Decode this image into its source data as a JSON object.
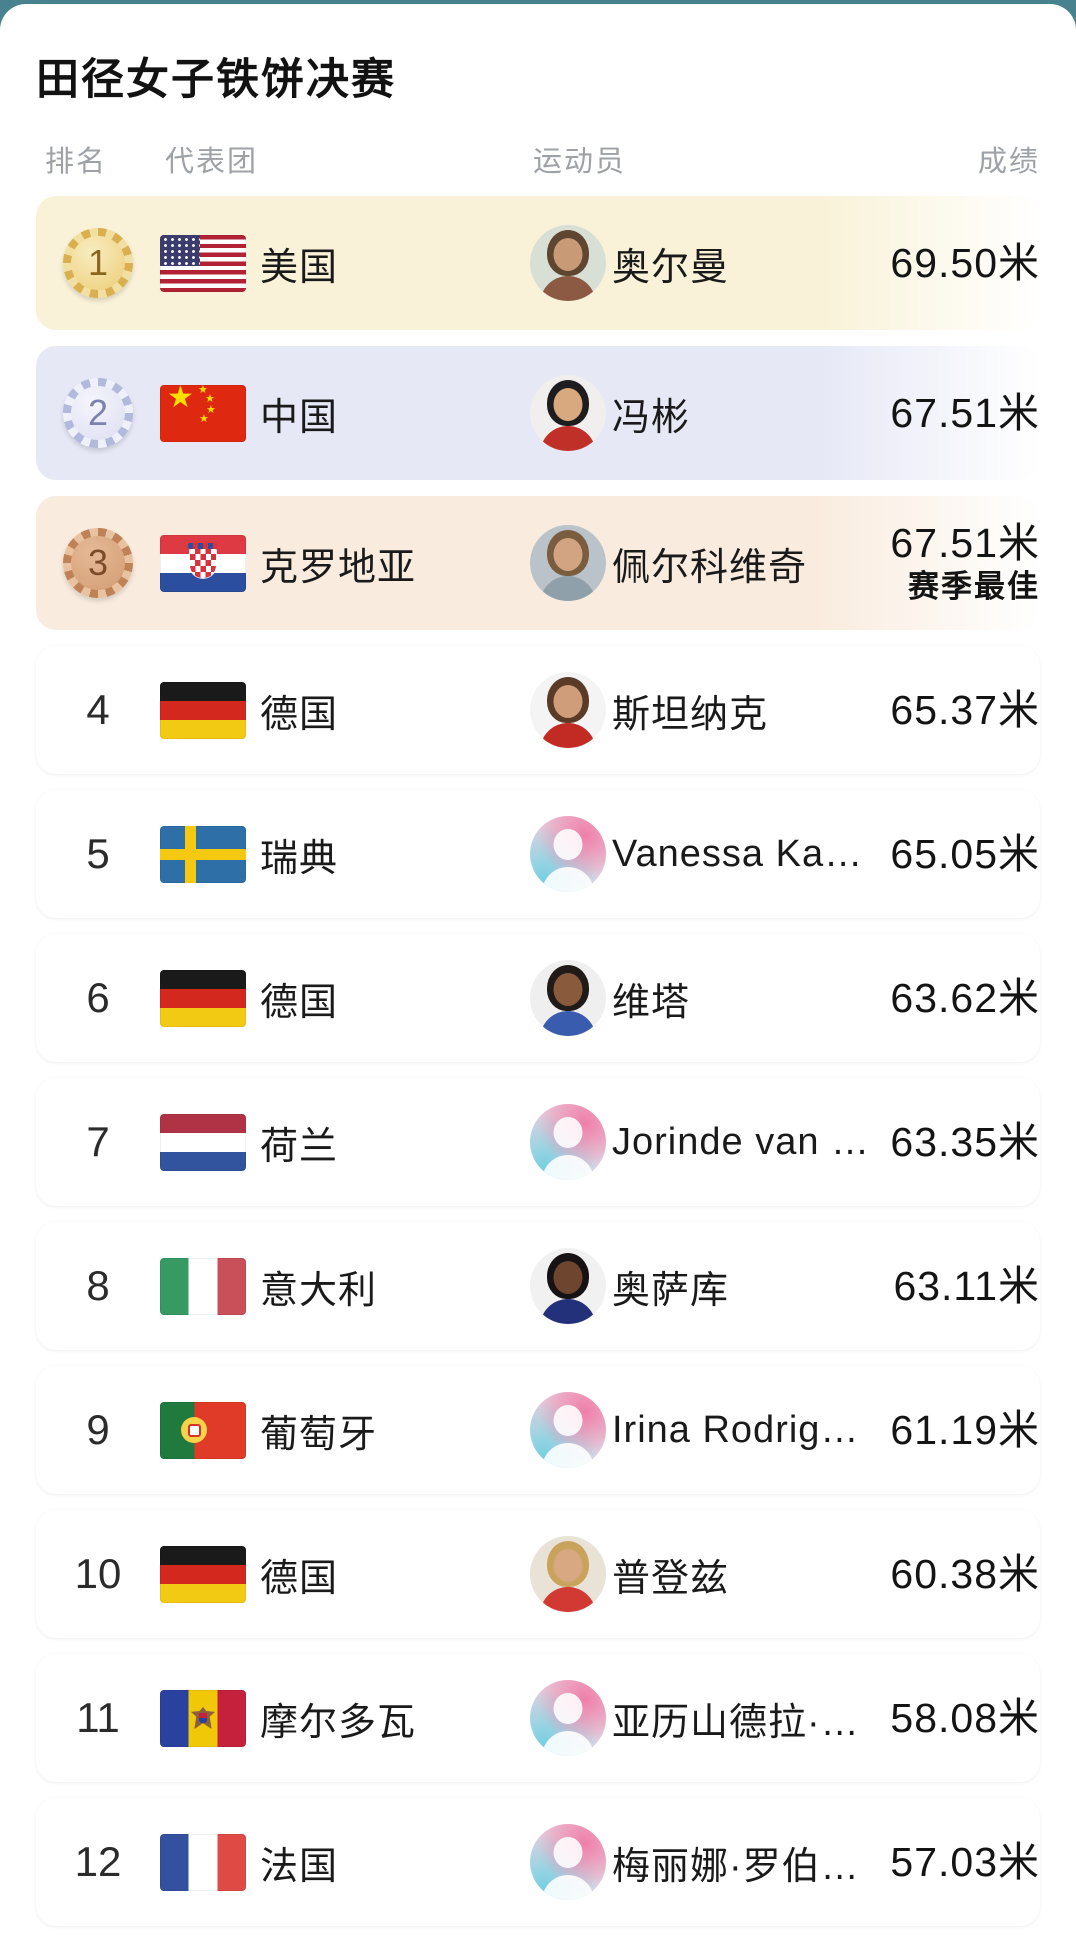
{
  "page": {
    "background_color": "#47828e",
    "card_color": "#ffffff"
  },
  "title": "田径女子铁饼决赛",
  "table": {
    "columns": [
      {
        "key": "rank",
        "label": "排名"
      },
      {
        "key": "team",
        "label": "代表团"
      },
      {
        "key": "athlete",
        "label": "运动员"
      },
      {
        "key": "result",
        "label": "成绩"
      }
    ],
    "rows": [
      {
        "rank": "1",
        "medal": "gold",
        "country": "美国",
        "flag": "us",
        "athlete": "奥尔曼",
        "result": "69.50米",
        "note": "",
        "avatar": {
          "type": "photo",
          "bg": "#d8e0d6",
          "hair": "#5f4630",
          "skin": "#c99a76",
          "shirt": "#8c5a42"
        }
      },
      {
        "rank": "2",
        "medal": "silver",
        "country": "中国",
        "flag": "cn",
        "athlete": "冯彬",
        "result": "67.51米",
        "note": "",
        "avatar": {
          "type": "photo",
          "bg": "#f0efed",
          "hair": "#1d1d1f",
          "skin": "#d8a87e",
          "shirt": "#c03028"
        }
      },
      {
        "rank": "3",
        "medal": "bronze",
        "country": "克罗地亚",
        "flag": "hr",
        "athlete": "佩尔科维奇",
        "result": "67.51米",
        "note": "赛季最佳",
        "avatar": {
          "type": "photo",
          "bg": "#b9c3c9",
          "hair": "#7a5c3e",
          "skin": "#d3a482",
          "shirt": "#90a0ab"
        }
      },
      {
        "rank": "4",
        "medal": "",
        "country": "德国",
        "flag": "de",
        "athlete": "斯坦纳克",
        "result": "65.37米",
        "note": "",
        "avatar": {
          "type": "photo",
          "bg": "#f4f4f4",
          "hair": "#5a3b28",
          "skin": "#cf9d79",
          "shirt": "#c22b24"
        }
      },
      {
        "rank": "5",
        "medal": "",
        "country": "瑞典",
        "flag": "se",
        "athlete": "Vanessa Ka…",
        "result": "65.05米",
        "note": "",
        "avatar": {
          "type": "default"
        }
      },
      {
        "rank": "6",
        "medal": "",
        "country": "德国",
        "flag": "de",
        "athlete": "维塔",
        "result": "63.62米",
        "note": "",
        "avatar": {
          "type": "photo",
          "bg": "#efefef",
          "hair": "#201a18",
          "skin": "#8a5a3c",
          "shirt": "#3a5cae"
        }
      },
      {
        "rank": "7",
        "medal": "",
        "country": "荷兰",
        "flag": "nl",
        "athlete": "Jorinde van …",
        "result": "63.35米",
        "note": "",
        "avatar": {
          "type": "default"
        }
      },
      {
        "rank": "8",
        "medal": "",
        "country": "意大利",
        "flag": "it",
        "athlete": "奥萨库",
        "result": "63.11米",
        "note": "",
        "avatar": {
          "type": "photo",
          "bg": "#f1f1f1",
          "hair": "#171314",
          "skin": "#6e4630",
          "shirt": "#23307a"
        }
      },
      {
        "rank": "9",
        "medal": "",
        "country": "葡萄牙",
        "flag": "pt",
        "athlete": "Irina Rodrig…",
        "result": "61.19米",
        "note": "",
        "avatar": {
          "type": "default"
        }
      },
      {
        "rank": "10",
        "medal": "",
        "country": "德国",
        "flag": "de",
        "athlete": "普登兹",
        "result": "60.38米",
        "note": "",
        "avatar": {
          "type": "photo",
          "bg": "#e9e2d6",
          "hair": "#c9a35c",
          "skin": "#d8a883",
          "shirt": "#d03a32"
        }
      },
      {
        "rank": "11",
        "medal": "",
        "country": "摩尔多瓦",
        "flag": "md",
        "athlete": "亚历山德拉·…",
        "result": "58.08米",
        "note": "",
        "avatar": {
          "type": "default"
        }
      },
      {
        "rank": "12",
        "medal": "",
        "country": "法国",
        "flag": "fr",
        "athlete": "梅丽娜·罗伯…",
        "result": "57.03米",
        "note": "",
        "avatar": {
          "type": "default"
        }
      }
    ]
  },
  "medal_colors": {
    "gold": "#e2bd62",
    "silver": "#c3c7e7",
    "bronze": "#cd9068"
  },
  "row_highlight_colors": {
    "gold": "#f9f2d8",
    "silver": "#e6e8f6",
    "bronze": "#f9ecdf"
  }
}
